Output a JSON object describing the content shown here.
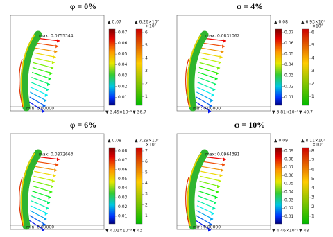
{
  "panels": [
    {
      "title": "φ = 0%",
      "max_label": "max: 0.0755344",
      "min_label": "min: 0.00000",
      "scale1": {
        "top": "▲ 0.07",
        "ticks": [
          "0.07",
          "0.06",
          "0.05",
          "0.04",
          "0.03",
          "0.02",
          "0.01"
        ],
        "bottom": "▼ 3.45×10⁻⁹"
      },
      "scale2": {
        "top": "▲ 6.26×10⁷",
        "exponent": "×10⁷",
        "ticks": [
          "6",
          "5",
          "4",
          "3",
          "2",
          "1"
        ],
        "bottom": "▼ 36.7"
      }
    },
    {
      "title": "φ = 4%",
      "max_label": "max: 0.0831062",
      "min_label": "min: 0.00000",
      "scale1": {
        "top": "▲ 0.08",
        "ticks": [
          "0.07",
          "0.06",
          "0.05",
          "0.04",
          "0.03",
          "0.02",
          "0.01"
        ],
        "bottom": "▼ 3.81×10⁻⁹"
      },
      "scale2": {
        "top": "▲ 6.93×10⁷",
        "exponent": "×10⁷",
        "ticks": [
          "6",
          "5",
          "4",
          "3",
          "2",
          "1"
        ],
        "bottom": "▼ 40.7"
      }
    },
    {
      "title": "φ = 6%",
      "max_label": "max: 0.0872663",
      "min_label": "min: 0.00000",
      "scale1": {
        "top": "▲ 0.08",
        "ticks": [
          "0.08",
          "0.07",
          "0.06",
          "0.05",
          "0.04",
          "0.03",
          "0.02",
          "0.01"
        ],
        "bottom": "▼ 4.01×10⁻⁹"
      },
      "scale2": {
        "top": "▲ 7.29×10⁷",
        "exponent": "×10⁷",
        "ticks": [
          "7",
          "6",
          "5",
          "4",
          "3",
          "2",
          "1"
        ],
        "bottom": "▼ 43"
      }
    },
    {
      "title": "φ = 10%",
      "max_label": "max: 0.0964391",
      "min_label": "min: 0.00000",
      "scale1": {
        "top": "▲ 0.09",
        "ticks": [
          "0.09",
          "0.08",
          "0.07",
          "0.06",
          "0.05",
          "0.04",
          "0.03",
          "0.02",
          "0.01"
        ],
        "bottom": "▼ 4.46×10⁻⁹"
      },
      "scale2": {
        "top": "▲ 8.11×10⁷",
        "exponent": "×10⁷",
        "ticks": [
          "8",
          "7",
          "6",
          "5",
          "4",
          "3",
          "2",
          "1"
        ],
        "bottom": "▼ 48"
      }
    }
  ]
}
